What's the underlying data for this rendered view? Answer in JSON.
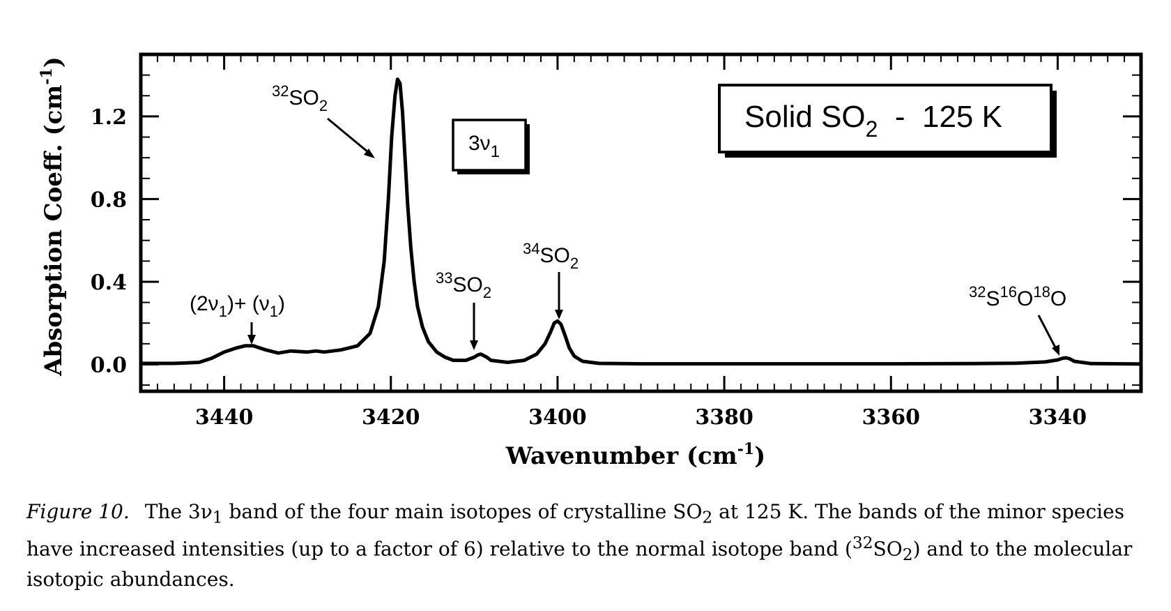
{
  "chart_data": {
    "type": "line",
    "title": "",
    "xlabel": "Wavenumber (cm",
    "xlabel_sup": "-1",
    "xlabel_end": ")",
    "ylabel": "Absorption Coeff. (cm",
    "ylabel_sup": "-1",
    "ylabel_end": ")",
    "xlim": [
      3450,
      3330
    ],
    "ylim": [
      -0.13,
      1.5
    ],
    "x_axis_reversed": true,
    "x_ticks": [
      3440,
      3420,
      3400,
      3380,
      3360,
      3340
    ],
    "y_ticks": [
      0.0,
      0.4,
      0.8,
      1.2
    ],
    "x_tick_labels": [
      "3440",
      "3420",
      "3400",
      "3380",
      "3360",
      "3340"
    ],
    "y_tick_labels": [
      "0.0",
      "0.4",
      "0.8",
      "1.2"
    ],
    "grid": false,
    "series": [
      {
        "x": [
          3450,
          3446,
          3443,
          3441.5,
          3440,
          3438.5,
          3437.5,
          3436.5,
          3435,
          3433.5,
          3432,
          3430,
          3429,
          3428,
          3426,
          3424,
          3422.5,
          3421.5,
          3420.8,
          3420.3,
          3419.9,
          3419.5,
          3419.2,
          3418.9,
          3418.6,
          3418.3,
          3418.0,
          3417.6,
          3417.2,
          3416.8,
          3416.2,
          3415.5,
          3414.5,
          3413.5,
          3412.5,
          3411,
          3410,
          3409.6,
          3409.2,
          3408.5,
          3408,
          3406,
          3404,
          3402.5,
          3401.5,
          3400.8,
          3400.4,
          3400.0,
          3399.6,
          3399.1,
          3398.6,
          3398,
          3397,
          3395,
          3390,
          3380,
          3370,
          3360,
          3350,
          3345,
          3341.5,
          3340,
          3339.4,
          3339.0,
          3338.6,
          3338,
          3336,
          3330
        ],
        "y": [
          0.005,
          0.005,
          0.01,
          0.03,
          0.06,
          0.08,
          0.09,
          0.09,
          0.07,
          0.055,
          0.065,
          0.06,
          0.065,
          0.06,
          0.07,
          0.09,
          0.15,
          0.28,
          0.5,
          0.8,
          1.1,
          1.3,
          1.38,
          1.36,
          1.22,
          1.0,
          0.78,
          0.56,
          0.4,
          0.28,
          0.18,
          0.11,
          0.06,
          0.035,
          0.02,
          0.02,
          0.035,
          0.045,
          0.05,
          0.035,
          0.02,
          0.01,
          0.02,
          0.05,
          0.1,
          0.16,
          0.2,
          0.21,
          0.195,
          0.14,
          0.08,
          0.04,
          0.015,
          0.005,
          0.003,
          0.003,
          0.003,
          0.003,
          0.004,
          0.006,
          0.012,
          0.022,
          0.03,
          0.032,
          0.028,
          0.015,
          0.004,
          0.002
        ]
      }
    ],
    "annotations": [
      {
        "id": "peak-32so2",
        "sup": "32",
        "text": "SO",
        "sub": "2"
      },
      {
        "id": "peak-33so2",
        "sup": "33",
        "text": "SO",
        "sub": "2"
      },
      {
        "id": "peak-34so2",
        "sup": "34",
        "text": "SO",
        "sub": "2"
      },
      {
        "id": "peak-32s16o18o",
        "sup1": "32",
        "t1": "S",
        "sup2": "16",
        "t2": "O",
        "sup3": "18",
        "t3": "O"
      },
      {
        "id": "combination-band",
        "p1": "(2ν",
        "s1": "1",
        "p2": ")+ (ν",
        "s2": "1",
        "p3": ")"
      }
    ],
    "band_box": {
      "text": "3ν",
      "sub": "1"
    },
    "legend_box": {
      "text_before": "Solid SO",
      "sub": "2",
      "text_after": "  -  125 K"
    }
  },
  "caption": {
    "label": "Figure 10.",
    "p1": "The 3ν",
    "p1_sub": "1",
    "p2": " band of the four main isotopes of crystalline SO",
    "p2_sub": "2",
    "p3": " at 125 K. The bands of the minor species have increased intensities (up to a factor of 6) relative to the normal isotope band (",
    "p3_sup": "32",
    "p4": "SO",
    "p4_sub": "2",
    "p5": ") and to the molecular isotopic abundances."
  }
}
